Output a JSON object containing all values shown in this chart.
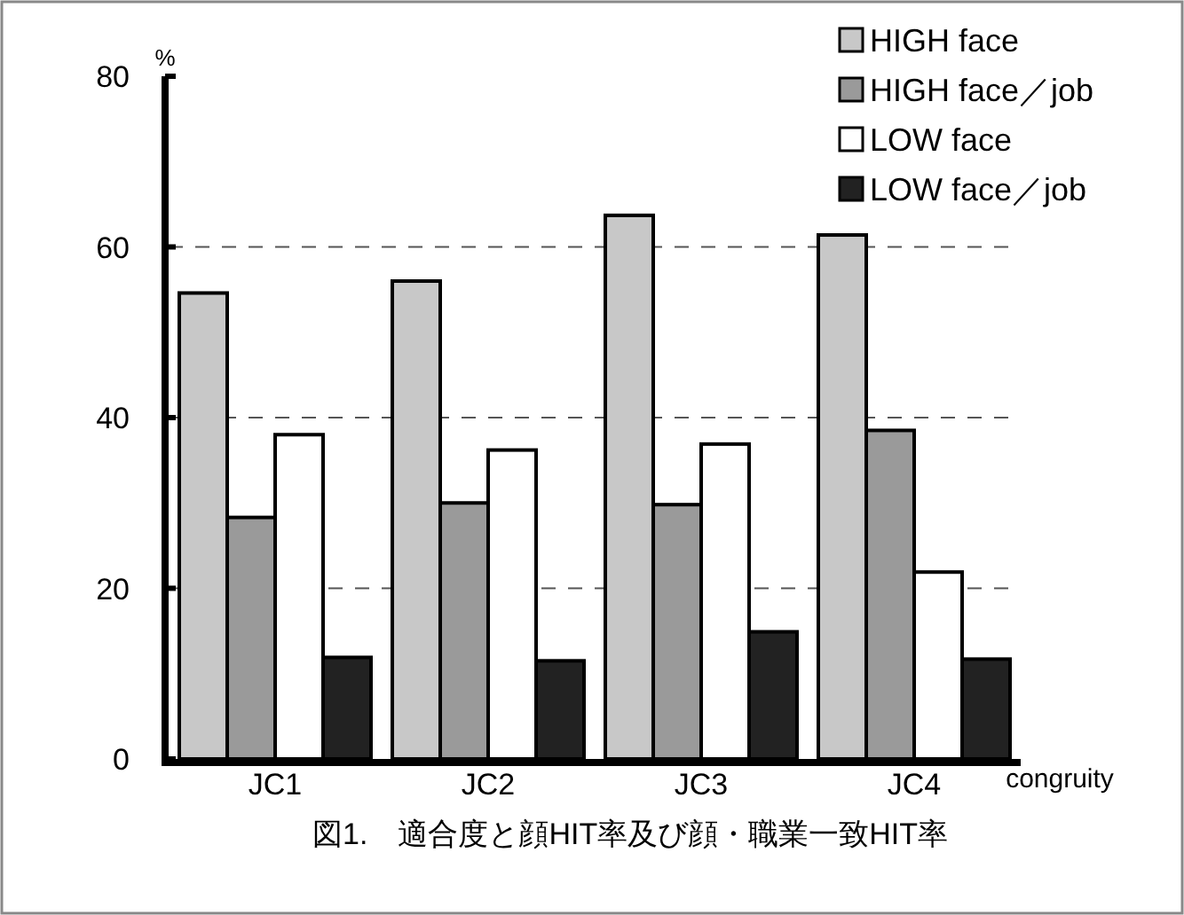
{
  "chart_data": {
    "type": "bar",
    "title": "図1.　適合度と顔HIT率及び顔・職業一致HIT率",
    "ylabel": "%",
    "xlabel": "congruity",
    "categories": [
      "JC1",
      "JC2",
      "JC3",
      "JC4"
    ],
    "series": [
      {
        "name": "HIGH face",
        "color": "#c8c8c8",
        "values": [
          54.6,
          56.0,
          63.7,
          61.4
        ]
      },
      {
        "name": "HIGH face／job",
        "color": "#9a9a9a",
        "values": [
          28.3,
          30.0,
          29.8,
          38.5
        ]
      },
      {
        "name": "LOW face",
        "color": "#ffffff",
        "values": [
          38.0,
          36.2,
          36.9,
          21.9
        ]
      },
      {
        "name": "LOW face／job",
        "color": "#222222",
        "values": [
          11.9,
          11.5,
          14.9,
          11.7
        ]
      }
    ],
    "ylim": [
      0,
      80
    ],
    "yticks": [
      0,
      20,
      40,
      60,
      80
    ],
    "grid": "y",
    "legend": "top right"
  }
}
